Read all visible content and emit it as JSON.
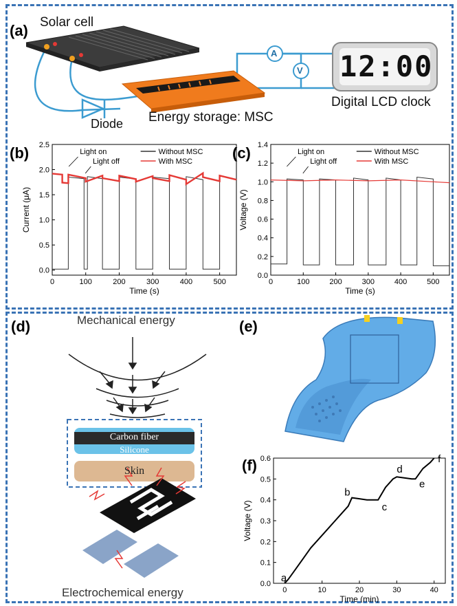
{
  "panel_labels": {
    "a": "(a)",
    "b": "(b)",
    "c": "(c)",
    "d": "(d)",
    "e": "(e)",
    "f": "(f)"
  },
  "panel_a": {
    "solar_cell": "Solar cell",
    "diode": "Diode",
    "energy_storage": "Energy storage: MSC",
    "clock_caption": "Digital LCD clock",
    "clock_time": "12:00",
    "ammeter": "A",
    "voltmeter": "V"
  },
  "panel_d": {
    "mechanical": "Mechanical energy",
    "carbon_fiber": "Carbon fiber",
    "silicone": "Silicone",
    "skin": "Skin",
    "electrochemical": "Electrochemical energy"
  },
  "colors": {
    "dash": "#3a73b5",
    "orange": "#f07b1d",
    "mscblue": "#5aa8e6",
    "skin": "#ddb892",
    "red": "#e53935"
  },
  "chart_data": [
    {
      "id": "b",
      "type": "line",
      "xlabel": "Time (s)",
      "ylabel": "Current (μA)",
      "xlim": [
        0,
        550
      ],
      "ylim": [
        -0.1,
        2.5
      ],
      "xticks": [
        0,
        100,
        200,
        300,
        400,
        500
      ],
      "yticks": [
        0.0,
        0.5,
        1.0,
        1.5,
        2.0,
        2.5
      ],
      "annotations": [
        "Light on",
        "Light off"
      ],
      "series": [
        {
          "name": "Without MSC",
          "color": "#333333",
          "x": [
            0,
            48,
            48,
            95,
            95,
            105,
            105,
            150,
            150,
            200,
            200,
            250,
            250,
            300,
            300,
            350,
            350,
            400,
            400,
            450,
            450,
            500,
            500,
            550
          ],
          "y": [
            0.02,
            0.02,
            1.85,
            1.82,
            0.02,
            0.02,
            1.86,
            1.82,
            0.02,
            0.02,
            1.85,
            1.81,
            0.02,
            0.02,
            1.85,
            1.82,
            0.02,
            0.02,
            1.86,
            1.8,
            0.02,
            0.02,
            1.88,
            1.8
          ]
        },
        {
          "name": "With MSC",
          "color": "#e53935",
          "x": [
            0,
            30,
            30,
            48,
            48,
            100,
            100,
            150,
            150,
            200,
            200,
            250,
            250,
            300,
            300,
            350,
            350,
            400,
            400,
            450,
            450,
            500,
            500,
            550
          ],
          "y": [
            1.92,
            1.9,
            1.74,
            1.73,
            1.9,
            1.83,
            1.76,
            1.88,
            1.83,
            1.77,
            1.88,
            1.81,
            1.76,
            1.87,
            1.83,
            1.77,
            1.89,
            1.8,
            1.71,
            1.93,
            1.85,
            1.77,
            1.88,
            1.8
          ]
        }
      ]
    },
    {
      "id": "c",
      "type": "line",
      "xlabel": "Time (s)",
      "ylabel": "Voltage (V)",
      "xlim": [
        0,
        550
      ],
      "ylim": [
        0.0,
        1.4
      ],
      "xticks": [
        0,
        100,
        200,
        300,
        400,
        500
      ],
      "yticks": [
        0.0,
        0.2,
        0.4,
        0.6,
        0.8,
        1.0,
        1.2,
        1.4
      ],
      "annotations": [
        "Light on",
        "Light off"
      ],
      "series": [
        {
          "name": "Without MSC",
          "color": "#333333",
          "x": [
            0,
            50,
            50,
            100,
            100,
            150,
            150,
            200,
            200,
            255,
            255,
            300,
            300,
            355,
            355,
            400,
            400,
            450,
            450,
            500,
            500,
            550
          ],
          "y": [
            0.12,
            0.12,
            1.03,
            1.02,
            0.11,
            0.11,
            1.03,
            1.02,
            0.11,
            0.11,
            1.04,
            1.02,
            0.11,
            0.11,
            1.04,
            1.02,
            0.11,
            0.11,
            1.05,
            1.03,
            0.1,
            0.1
          ]
        },
        {
          "name": "With MSC",
          "color": "#e53935",
          "x": [
            0,
            100,
            200,
            300,
            400,
            500,
            550
          ],
          "y": [
            1.02,
            1.01,
            1.02,
            1.01,
            1.02,
            1.0,
            0.99
          ]
        }
      ]
    },
    {
      "id": "f",
      "type": "line",
      "xlabel": "Time (min)",
      "ylabel": "Voltage (V)",
      "xlim": [
        -3,
        43
      ],
      "ylim": [
        0.0,
        0.6
      ],
      "xticks": [
        0,
        10,
        20,
        30,
        40
      ],
      "yticks": [
        0.0,
        0.1,
        0.2,
        0.3,
        0.4,
        0.5,
        0.6
      ],
      "point_labels": [
        {
          "t": "a",
          "x": -1,
          "y": 0.01
        },
        {
          "t": "b",
          "x": 16,
          "y": 0.42
        },
        {
          "t": "c",
          "x": 26,
          "y": 0.35
        },
        {
          "t": "d",
          "x": 30,
          "y": 0.53
        },
        {
          "t": "e",
          "x": 36,
          "y": 0.46
        },
        {
          "t": "f",
          "x": 41,
          "y": 0.58
        }
      ],
      "series": [
        {
          "name": "",
          "color": "#000000",
          "x": [
            0,
            1,
            3,
            5,
            7,
            9,
            11,
            13,
            15,
            17,
            18,
            20,
            22,
            24,
            25,
            27,
            29,
            30,
            32,
            34,
            35,
            37,
            39,
            40
          ],
          "y": [
            0.0,
            0.02,
            0.07,
            0.12,
            0.17,
            0.21,
            0.25,
            0.29,
            0.33,
            0.37,
            0.41,
            0.405,
            0.4,
            0.4,
            0.4,
            0.46,
            0.5,
            0.51,
            0.505,
            0.5,
            0.5,
            0.55,
            0.58,
            0.6
          ]
        }
      ]
    }
  ]
}
